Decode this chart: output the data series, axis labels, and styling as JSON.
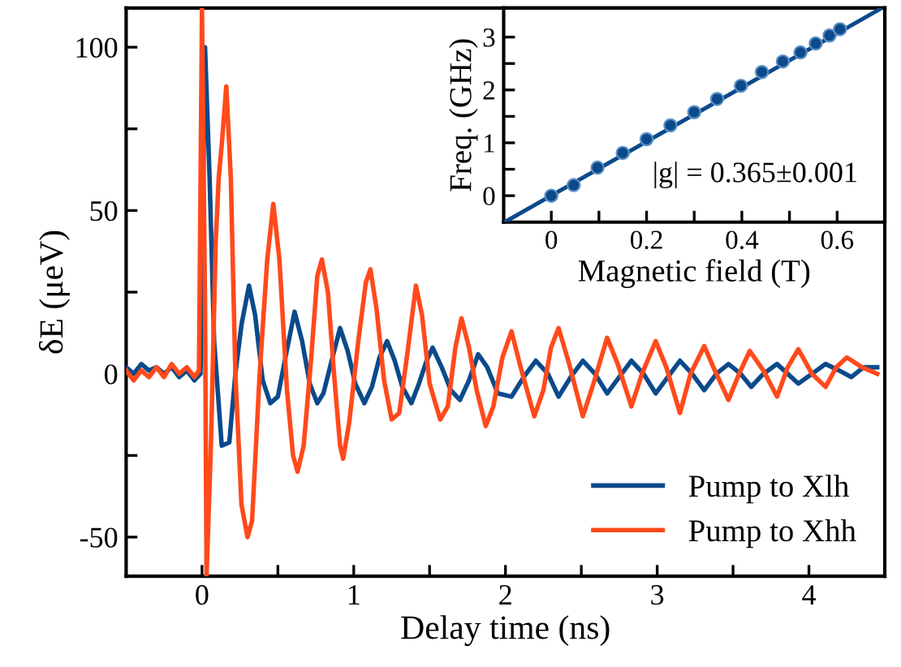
{
  "chart_data": [
    {
      "type": "line",
      "xlabel": "Delay time (ns)",
      "ylabel": "δE (μeV)",
      "xlim": [
        -0.5,
        4.5
      ],
      "ylim": [
        -62,
        112
      ],
      "xticks": [
        0,
        {
          "value": 0.5,
          "label": null
        },
        1,
        {
          "value": 1.5,
          "label": null
        },
        2,
        {
          "value": 2.5,
          "label": null
        },
        3,
        {
          "value": 3.5,
          "label": null
        },
        4
      ],
      "yticks": [
        -50,
        {
          "value": -25,
          "label": null
        },
        0,
        {
          "value": 25,
          "label": null
        },
        50,
        {
          "value": 75,
          "label": null
        },
        100
      ],
      "grid": false,
      "legend": "bottom right",
      "line_style": "solid",
      "series": [
        {
          "name": "Pump to Xlh",
          "color": "#0b4a8b",
          "x": [
            -0.5,
            -0.45,
            -0.4,
            -0.35,
            -0.3,
            -0.25,
            -0.2,
            -0.15,
            -0.1,
            -0.05,
            -0.01,
            0.02,
            0.05,
            0.08,
            0.13,
            0.18,
            0.22,
            0.26,
            0.31,
            0.35,
            0.4,
            0.45,
            0.5,
            0.55,
            0.61,
            0.66,
            0.71,
            0.76,
            0.8,
            0.86,
            0.91,
            0.96,
            1.01,
            1.07,
            1.12,
            1.17,
            1.22,
            1.27,
            1.32,
            1.38,
            1.43,
            1.48,
            1.52,
            1.58,
            1.64,
            1.7,
            1.76,
            1.82,
            1.88,
            1.95,
            2.04,
            2.12,
            2.2,
            2.28,
            2.35,
            2.43,
            2.51,
            2.59,
            2.67,
            2.75,
            2.83,
            2.91,
            2.99,
            3.07,
            3.15,
            3.23,
            3.31,
            3.39,
            3.47,
            3.55,
            3.62,
            3.7,
            3.79,
            3.86,
            3.93,
            4.02,
            4.11,
            4.2,
            4.28,
            4.36,
            4.45
          ],
          "values": [
            2,
            0,
            3,
            1,
            2,
            0,
            2,
            -1,
            1,
            -2,
            0,
            100,
            60,
            10,
            -22,
            -21,
            0,
            15,
            27,
            18,
            -2,
            -9,
            -7,
            5,
            19,
            10,
            -3,
            -9,
            -6,
            5,
            14,
            7,
            -3,
            -9,
            -4,
            5,
            10,
            4,
            -4,
            -9,
            -3,
            4,
            8,
            2,
            -5,
            -8,
            -2,
            6,
            2,
            -6,
            -7,
            -1,
            4,
            0,
            -7,
            -1,
            4,
            0,
            -6,
            -1,
            4,
            0,
            -6,
            -1,
            4,
            0,
            -5,
            0,
            3,
            0,
            -4,
            0,
            3,
            0,
            -3,
            0,
            3,
            1,
            -1,
            2,
            2
          ]
        },
        {
          "name": "Pump to Xhh",
          "color": "#ff4a1c",
          "x": [
            -0.5,
            -0.45,
            -0.4,
            -0.35,
            -0.3,
            -0.25,
            -0.2,
            -0.15,
            -0.1,
            -0.05,
            -0.02,
            0.0,
            0.02,
            0.03,
            0.06,
            0.09,
            0.11,
            0.13,
            0.16,
            0.19,
            0.22,
            0.26,
            0.3,
            0.33,
            0.38,
            0.43,
            0.47,
            0.51,
            0.56,
            0.6,
            0.63,
            0.67,
            0.72,
            0.76,
            0.79,
            0.83,
            0.87,
            0.91,
            0.93,
            0.97,
            1.03,
            1.08,
            1.11,
            1.15,
            1.2,
            1.25,
            1.3,
            1.35,
            1.41,
            1.45,
            1.5,
            1.57,
            1.62,
            1.67,
            1.71,
            1.76,
            1.81,
            1.87,
            1.92,
            1.98,
            2.04,
            2.1,
            2.19,
            2.25,
            2.3,
            2.35,
            2.42,
            2.51,
            2.58,
            2.67,
            2.74,
            2.83,
            2.9,
            2.99,
            3.06,
            3.15,
            3.22,
            3.31,
            3.38,
            3.47,
            3.54,
            3.61,
            3.7,
            3.79,
            3.86,
            3.93,
            4.02,
            4.11,
            4.18,
            4.25,
            4.35,
            4.45
          ],
          "values": [
            1,
            -2,
            1,
            -1,
            2,
            -1,
            3,
            0,
            2,
            -1,
            1,
            112,
            20,
            -62,
            -20,
            40,
            60,
            70,
            88,
            60,
            0,
            -40,
            -50,
            -45,
            0,
            35,
            52,
            35,
            -5,
            -25,
            -30,
            -22,
            5,
            30,
            35,
            25,
            0,
            -22,
            -26,
            -15,
            10,
            28,
            32,
            20,
            -2,
            -14,
            -12,
            5,
            27,
            18,
            -3,
            -14,
            -10,
            8,
            17,
            8,
            -5,
            -16,
            -10,
            5,
            13,
            2,
            -13,
            -5,
            8,
            14,
            3,
            -13,
            -3,
            11,
            3,
            -10,
            0,
            10,
            2,
            -12,
            0,
            8.5,
            1,
            -8,
            0,
            7,
            1,
            -7,
            2,
            7.5,
            0,
            -4,
            2,
            5,
            2,
            0
          ]
        }
      ]
    },
    {
      "type": "scatter",
      "xlabel": "Magnetic field (T)",
      "ylabel": "Freq. (GHz)",
      "xlim": [
        -0.1,
        0.7
      ],
      "ylim": [
        -0.5,
        3.55
      ],
      "xticks": [
        0,
        {
          "value": 0.1,
          "label": null
        },
        0.2,
        {
          "value": 0.3,
          "label": null
        },
        0.4,
        {
          "value": 0.5,
          "label": null
        },
        0.6
      ],
      "yticks": [
        0,
        {
          "value": 0.5,
          "label": null
        },
        1,
        {
          "value": 1.5,
          "label": null
        },
        2,
        {
          "value": 2.5,
          "label": null
        },
        3
      ],
      "grid": false,
      "annotations": [
        "|g| = 0.365±0.001"
      ],
      "series": [
        {
          "marker": "circle",
          "color": "#0b4a8b",
          "x": [
            0,
            0.047,
            0.097,
            0.15,
            0.2,
            0.25,
            0.3,
            0.348,
            0.398,
            0.442,
            0.486,
            0.523,
            0.555,
            0.584,
            0.606
          ],
          "values": [
            0,
            0.2,
            0.53,
            0.81,
            1.07,
            1.33,
            1.58,
            1.83,
            2.08,
            2.34,
            2.54,
            2.71,
            2.88,
            3.03,
            3.15
          ]
        },
        {
          "type": "line",
          "color": "#0b4a8b",
          "x": [
            -0.098,
            0.69
          ],
          "values": [
            -0.5,
            3.53
          ]
        }
      ]
    }
  ]
}
